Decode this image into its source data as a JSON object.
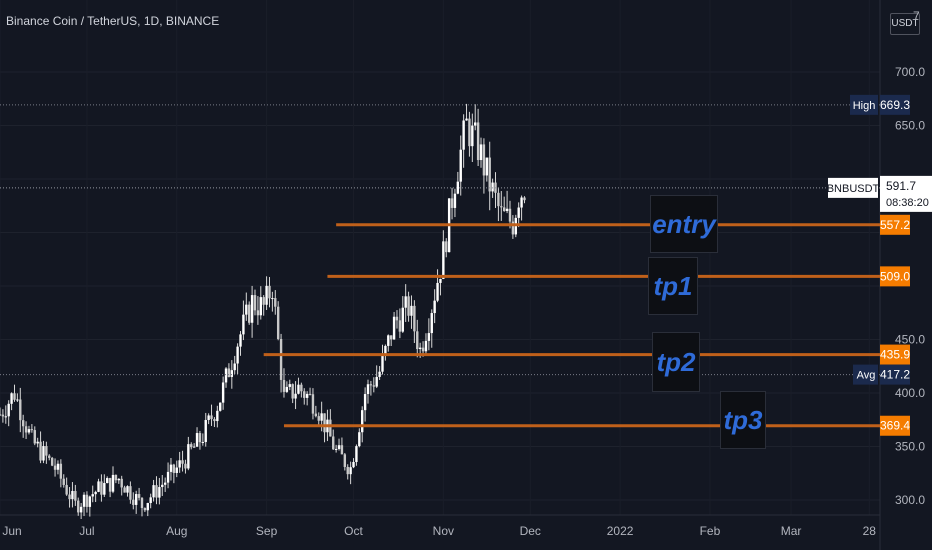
{
  "title": "Binance Coin / TetherUS, 1D, BINANCE",
  "unit": "USDT",
  "top_tick": "7",
  "colors": {
    "bg": "#131722",
    "up": "#ffffff",
    "down": "#ffffff",
    "orange": "#f57c00",
    "line": "#c0601a",
    "text": "#b2b5be",
    "navy": "#1b2a4d"
  },
  "chart_data": {
    "type": "candlestick",
    "title": "Binance Coin / TetherUS, 1D, BINANCE",
    "y_ticks": [
      300,
      350,
      400,
      450,
      500,
      550,
      600,
      650,
      700
    ],
    "y_tick_labels": [
      "300.0",
      "350.0",
      "400.0",
      "450.0",
      "",
      "",
      "",
      "650.0",
      "700.0"
    ],
    "ylim": [
      290,
      725
    ],
    "x_ticks": [
      "Jun",
      "Jul",
      "Aug",
      "Sep",
      "Oct",
      "Nov",
      "Dec",
      "2022",
      "Feb",
      "Mar",
      "28"
    ],
    "x_range": [
      "2021-06-01",
      "2022-03-31"
    ],
    "close_path": [
      [
        "2021-06-01",
        380
      ],
      [
        "2021-06-06",
        400
      ],
      [
        "2021-06-12",
        355
      ],
      [
        "2021-06-20",
        330
      ],
      [
        "2021-06-27",
        295
      ],
      [
        "2021-07-05",
        310
      ],
      [
        "2021-07-12",
        320
      ],
      [
        "2021-07-20",
        295
      ],
      [
        "2021-07-27",
        315
      ],
      [
        "2021-08-03",
        335
      ],
      [
        "2021-08-10",
        360
      ],
      [
        "2021-08-16",
        395
      ],
      [
        "2021-08-21",
        440
      ],
      [
        "2021-08-27",
        485
      ],
      [
        "2021-08-31",
        480
      ],
      [
        "2021-09-03",
        500
      ],
      [
        "2021-09-07",
        395
      ],
      [
        "2021-09-12",
        405
      ],
      [
        "2021-09-18",
        390
      ],
      [
        "2021-09-25",
        345
      ],
      [
        "2021-09-30",
        330
      ],
      [
        "2021-10-05",
        400
      ],
      [
        "2021-10-10",
        420
      ],
      [
        "2021-10-15",
        465
      ],
      [
        "2021-10-20",
        480
      ],
      [
        "2021-10-24",
        440
      ],
      [
        "2021-10-27",
        470
      ],
      [
        "2021-11-01",
        530
      ],
      [
        "2021-11-05",
        600
      ],
      [
        "2021-11-09",
        650
      ],
      [
        "2021-11-13",
        630
      ],
      [
        "2021-11-17",
        595
      ],
      [
        "2021-11-21",
        565
      ],
      [
        "2021-11-25",
        560
      ],
      [
        "2021-11-27",
        585
      ],
      [
        "2021-11-29",
        591.7
      ]
    ],
    "price_lines": [
      {
        "name": "entry",
        "value": 557.2,
        "label": "557.2",
        "from": "2021-09-25"
      },
      {
        "name": "tp1",
        "value": 509.0,
        "label": "509.0",
        "from": "2021-09-22"
      },
      {
        "name": "tp2",
        "value": 435.9,
        "label": "435.9",
        "from": "2021-08-31"
      },
      {
        "name": "tp3",
        "value": 369.4,
        "label": "369.4",
        "from": "2021-09-07"
      }
    ],
    "high": {
      "label": "High",
      "value": "669.3"
    },
    "avg": {
      "label": "Avg",
      "value": "417.2"
    },
    "current": {
      "symbol": "BNBUSDT",
      "value": "591.7",
      "countdown": "08:38:20"
    }
  },
  "annotations": [
    {
      "text": "entry",
      "price": 557.2
    },
    {
      "text": "tp1",
      "price": 509.0
    },
    {
      "text": "tp2",
      "price": 435.9
    },
    {
      "text": "tp3",
      "price": 369.4
    }
  ]
}
